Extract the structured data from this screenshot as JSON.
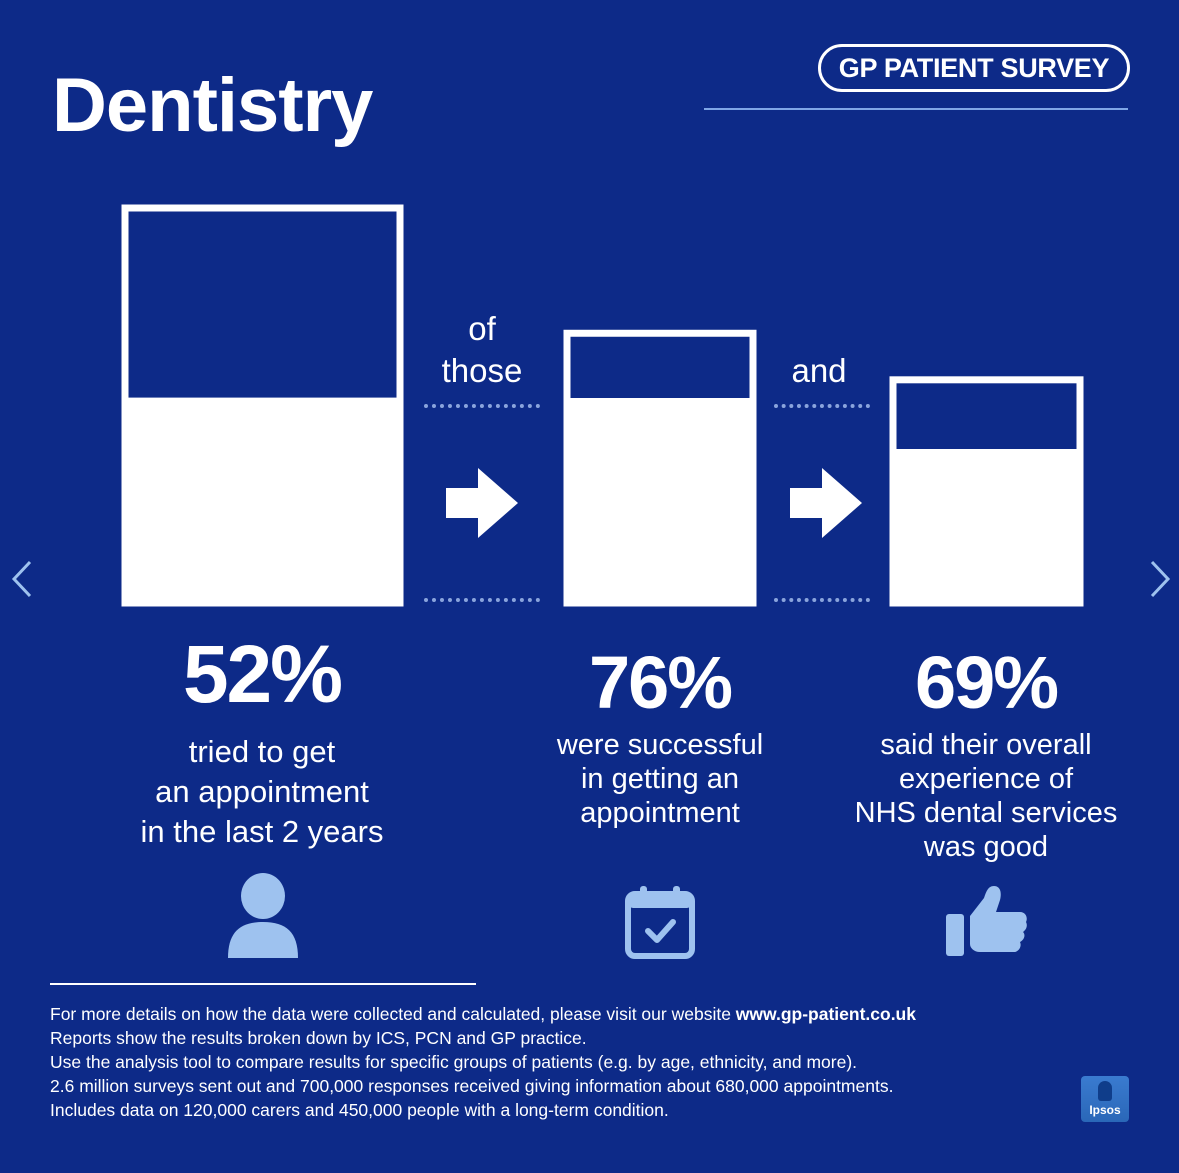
{
  "title": "Dentistry",
  "brand": "GP PATIENT SURVEY",
  "connectors": {
    "of_those_1": "of",
    "of_those_2": "those",
    "and": "and"
  },
  "chart_data": {
    "type": "bar",
    "series": [
      {
        "value": 52,
        "label": "52%",
        "description": [
          "tried to get",
          "an appointment",
          "in the last 2 years"
        ],
        "icon": "person-icon"
      },
      {
        "value": 76,
        "label": "76%",
        "description": [
          "were successful",
          "in getting an",
          "appointment"
        ],
        "icon": "calendar-check-icon"
      },
      {
        "value": 69,
        "label": "69%",
        "description": [
          "said their overall",
          "experience of",
          "NHS dental services",
          "was good"
        ],
        "icon": "thumbs-up-icon"
      }
    ],
    "ylim": [
      0,
      100
    ]
  },
  "footer": {
    "line1_text": "For more details on how the data were collected and calculated, please visit our website ",
    "line1_link": "www.gp-patient.co.uk",
    "line2": "Reports show the results broken down by ICS, PCN and GP practice.",
    "line3": "Use the analysis tool to compare results for specific groups of patients (e.g. by age, ethnicity, and more).",
    "line4": "2.6 million surveys sent out and 700,000 responses received giving information about 680,000 appointments.",
    "line5": "Includes data on 120,000 carers and 450,000 people with a long-term condition."
  },
  "logo": "Ipsos",
  "nav": {
    "prev_icon": "chevron-left-icon",
    "next_icon": "chevron-right-icon"
  },
  "colors": {
    "background": "#0d2a88",
    "fill": "#ffffff",
    "icon": "#9ec2ef"
  }
}
